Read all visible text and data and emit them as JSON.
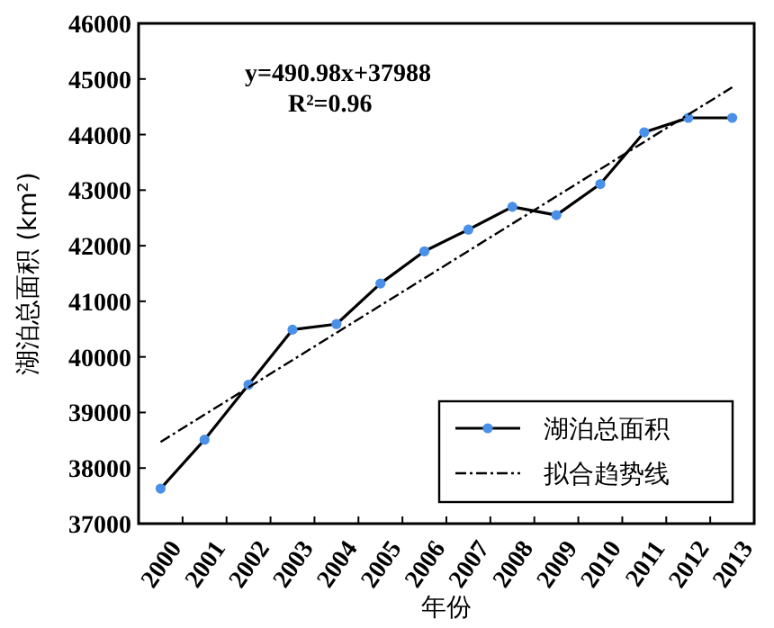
{
  "chart_data": {
    "type": "line",
    "xlabel": "年份",
    "ylabel": "湖泊总面积 (km²)",
    "categories": [
      "2000",
      "2001",
      "2002",
      "2003",
      "2004",
      "2005",
      "2006",
      "2007",
      "2008",
      "2009",
      "2010",
      "2011",
      "2012",
      "2013"
    ],
    "series": [
      {
        "name": "湖泊总面积",
        "color": "#000000",
        "colors": [
          "#4a8fe8",
          "#4a8fe8",
          "#4a8fe8",
          "#4a8fe8",
          "#4a8fe8",
          "#4a8fe8",
          "#4a8fe8",
          "#4a8fe8",
          "#4a8fe8",
          "#4a8fe8",
          "#4a8fe8",
          "#4a8fe8",
          "#4a8fe8",
          "#4a8fe8"
        ],
        "marker": "circle",
        "line_style": "solid",
        "values": [
          37630,
          38510,
          39500,
          40490,
          40590,
          41320,
          41900,
          42290,
          42700,
          42550,
          43110,
          44040,
          44300,
          44300
        ]
      },
      {
        "name": "拟合趋势线",
        "color": "#000000",
        "marker": "none",
        "line_style": "dashed",
        "values": [
          38470,
          null,
          null,
          null,
          null,
          null,
          null,
          null,
          null,
          null,
          null,
          null,
          null,
          44850
        ]
      }
    ],
    "ylim": [
      37000,
      46000
    ],
    "yticks": [
      37000,
      38000,
      39000,
      40000,
      41000,
      42000,
      43000,
      44000,
      45000,
      46000
    ],
    "annotations": [
      "y=490.98x+37988",
      "R²=0.96"
    ],
    "legend": "bottom right",
    "grid": false
  }
}
